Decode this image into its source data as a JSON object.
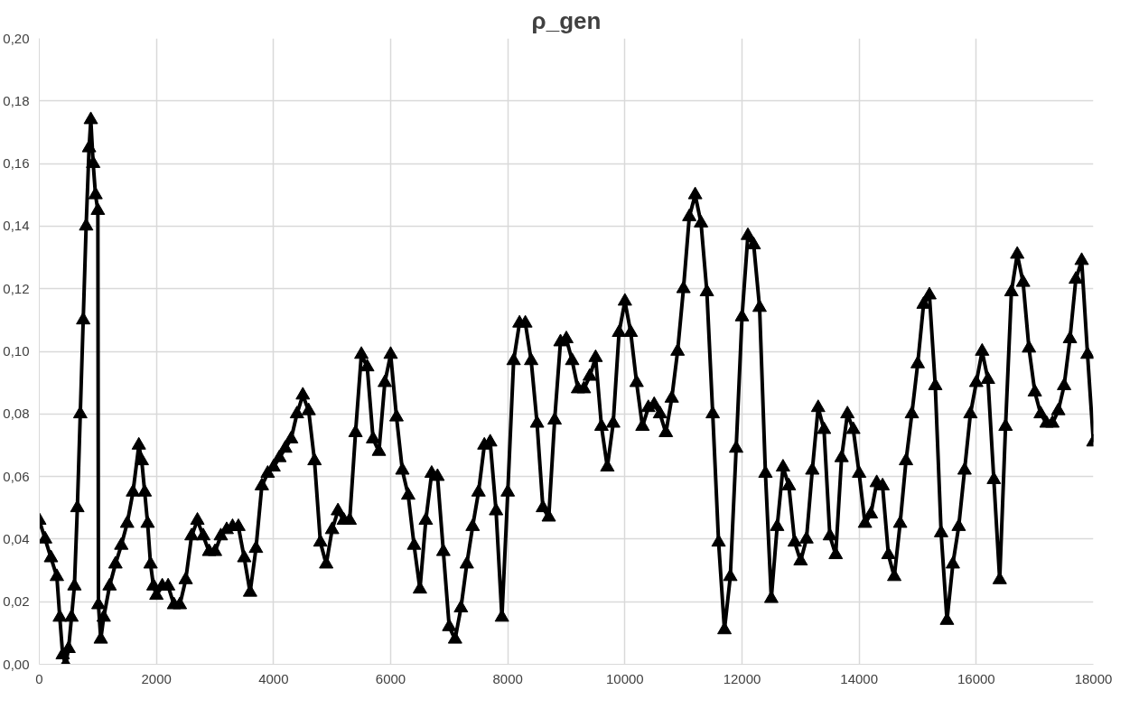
{
  "chart_data": {
    "type": "line",
    "title": "ρ_gen",
    "marker": "triangle",
    "line_style": "solid",
    "grid": true,
    "xlim": [
      0,
      18000
    ],
    "xticks": [
      0,
      2000,
      4000,
      6000,
      8000,
      10000,
      12000,
      14000,
      16000,
      18000
    ],
    "ylim": [
      0,
      0.2
    ],
    "yticks": [
      {
        "value": 0,
        "label": "0,00"
      },
      {
        "value": 0.02,
        "label": "0,02"
      },
      {
        "value": 0.04,
        "label": "0,04"
      },
      {
        "value": 0.06,
        "label": "0,06"
      },
      {
        "value": 0.08,
        "label": "0,08"
      },
      {
        "value": 0.1,
        "label": "0,10"
      },
      {
        "value": 0.12,
        "label": "0,12"
      },
      {
        "value": 0.14,
        "label": "0,14"
      },
      {
        "value": 0.16,
        "label": "0,16"
      },
      {
        "value": 0.18,
        "label": "0,18"
      },
      {
        "value": 0.2,
        "label": "0,20"
      }
    ],
    "x": [
      0,
      100,
      200,
      300,
      350,
      400,
      450,
      500,
      550,
      600,
      650,
      700,
      750,
      800,
      850,
      880,
      920,
      960,
      1000,
      1010,
      1050,
      1100,
      1200,
      1300,
      1400,
      1500,
      1600,
      1700,
      1750,
      1800,
      1850,
      1900,
      1950,
      2000,
      2100,
      2200,
      2300,
      2400,
      2500,
      2600,
      2700,
      2800,
      2900,
      3000,
      3100,
      3200,
      3300,
      3400,
      3500,
      3600,
      3700,
      3800,
      3900,
      4000,
      4100,
      4200,
      4300,
      4400,
      4500,
      4600,
      4700,
      4800,
      4900,
      5000,
      5100,
      5200,
      5300,
      5400,
      5500,
      5600,
      5700,
      5800,
      5900,
      6000,
      6100,
      6200,
      6300,
      6400,
      6500,
      6600,
      6700,
      6800,
      6900,
      7000,
      7100,
      7200,
      7300,
      7400,
      7500,
      7600,
      7700,
      7800,
      7900,
      8000,
      8100,
      8200,
      8300,
      8400,
      8500,
      8600,
      8700,
      8800,
      8900,
      9000,
      9100,
      9200,
      9300,
      9400,
      9500,
      9600,
      9700,
      9800,
      9900,
      10000,
      10100,
      10200,
      10300,
      10400,
      10500,
      10600,
      10700,
      10800,
      10900,
      11000,
      11100,
      11200,
      11300,
      11400,
      11500,
      11600,
      11700,
      11800,
      11900,
      12000,
      12100,
      12200,
      12300,
      12400,
      12500,
      12600,
      12700,
      12800,
      12900,
      13000,
      13100,
      13200,
      13300,
      13400,
      13500,
      13600,
      13700,
      13800,
      13900,
      14000,
      14100,
      14200,
      14300,
      14400,
      14500,
      14600,
      14700,
      14800,
      14900,
      15000,
      15100,
      15200,
      15300,
      15400,
      15500,
      15600,
      15700,
      15800,
      15900,
      16000,
      16100,
      16200,
      16300,
      16400,
      16500,
      16600,
      16700,
      16800,
      16900,
      17000,
      17100,
      17200,
      17300,
      17400,
      17500,
      17600,
      17700,
      17800,
      17900,
      18000
    ],
    "series": [
      {
        "color": "#000000",
        "values": [
          0.046,
          0.04,
          0.034,
          0.028,
          0.015,
          0.003,
          0.0,
          0.005,
          0.015,
          0.025,
          0.05,
          0.08,
          0.11,
          0.14,
          0.165,
          0.174,
          0.16,
          0.15,
          0.145,
          0.019,
          0.008,
          0.015,
          0.025,
          0.032,
          0.038,
          0.045,
          0.055,
          0.07,
          0.065,
          0.055,
          0.045,
          0.032,
          0.025,
          0.022,
          0.025,
          0.025,
          0.019,
          0.019,
          0.027,
          0.041,
          0.046,
          0.041,
          0.036,
          0.036,
          0.041,
          0.043,
          0.044,
          0.044,
          0.034,
          0.023,
          0.037,
          0.057,
          0.061,
          0.063,
          0.066,
          0.069,
          0.072,
          0.08,
          0.086,
          0.081,
          0.065,
          0.039,
          0.032,
          0.043,
          0.049,
          0.046,
          0.046,
          0.074,
          0.099,
          0.095,
          0.072,
          0.068,
          0.09,
          0.099,
          0.079,
          0.062,
          0.054,
          0.038,
          0.024,
          0.046,
          0.061,
          0.06,
          0.036,
          0.012,
          0.008,
          0.018,
          0.032,
          0.044,
          0.055,
          0.07,
          0.071,
          0.049,
          0.015,
          0.055,
          0.097,
          0.109,
          0.109,
          0.097,
          0.077,
          0.05,
          0.047,
          0.078,
          0.103,
          0.104,
          0.097,
          0.088,
          0.088,
          0.092,
          0.098,
          0.076,
          0.063,
          0.077,
          0.106,
          0.116,
          0.106,
          0.09,
          0.076,
          0.082,
          0.083,
          0.08,
          0.074,
          0.085,
          0.1,
          0.12,
          0.143,
          0.15,
          0.141,
          0.119,
          0.08,
          0.039,
          0.011,
          0.028,
          0.069,
          0.111,
          0.137,
          0.134,
          0.114,
          0.061,
          0.021,
          0.044,
          0.063,
          0.057,
          0.039,
          0.033,
          0.04,
          0.062,
          0.082,
          0.075,
          0.041,
          0.035,
          0.066,
          0.08,
          0.075,
          0.061,
          0.045,
          0.048,
          0.058,
          0.057,
          0.035,
          0.028,
          0.045,
          0.065,
          0.08,
          0.096,
          0.115,
          0.118,
          0.089,
          0.042,
          0.014,
          0.032,
          0.044,
          0.062,
          0.08,
          0.09,
          0.1,
          0.091,
          0.059,
          0.027,
          0.076,
          0.119,
          0.131,
          0.122,
          0.101,
          0.087,
          0.08,
          0.077,
          0.077,
          0.081,
          0.089,
          0.104,
          0.123,
          0.129,
          0.099,
          0.071
        ]
      }
    ]
  }
}
